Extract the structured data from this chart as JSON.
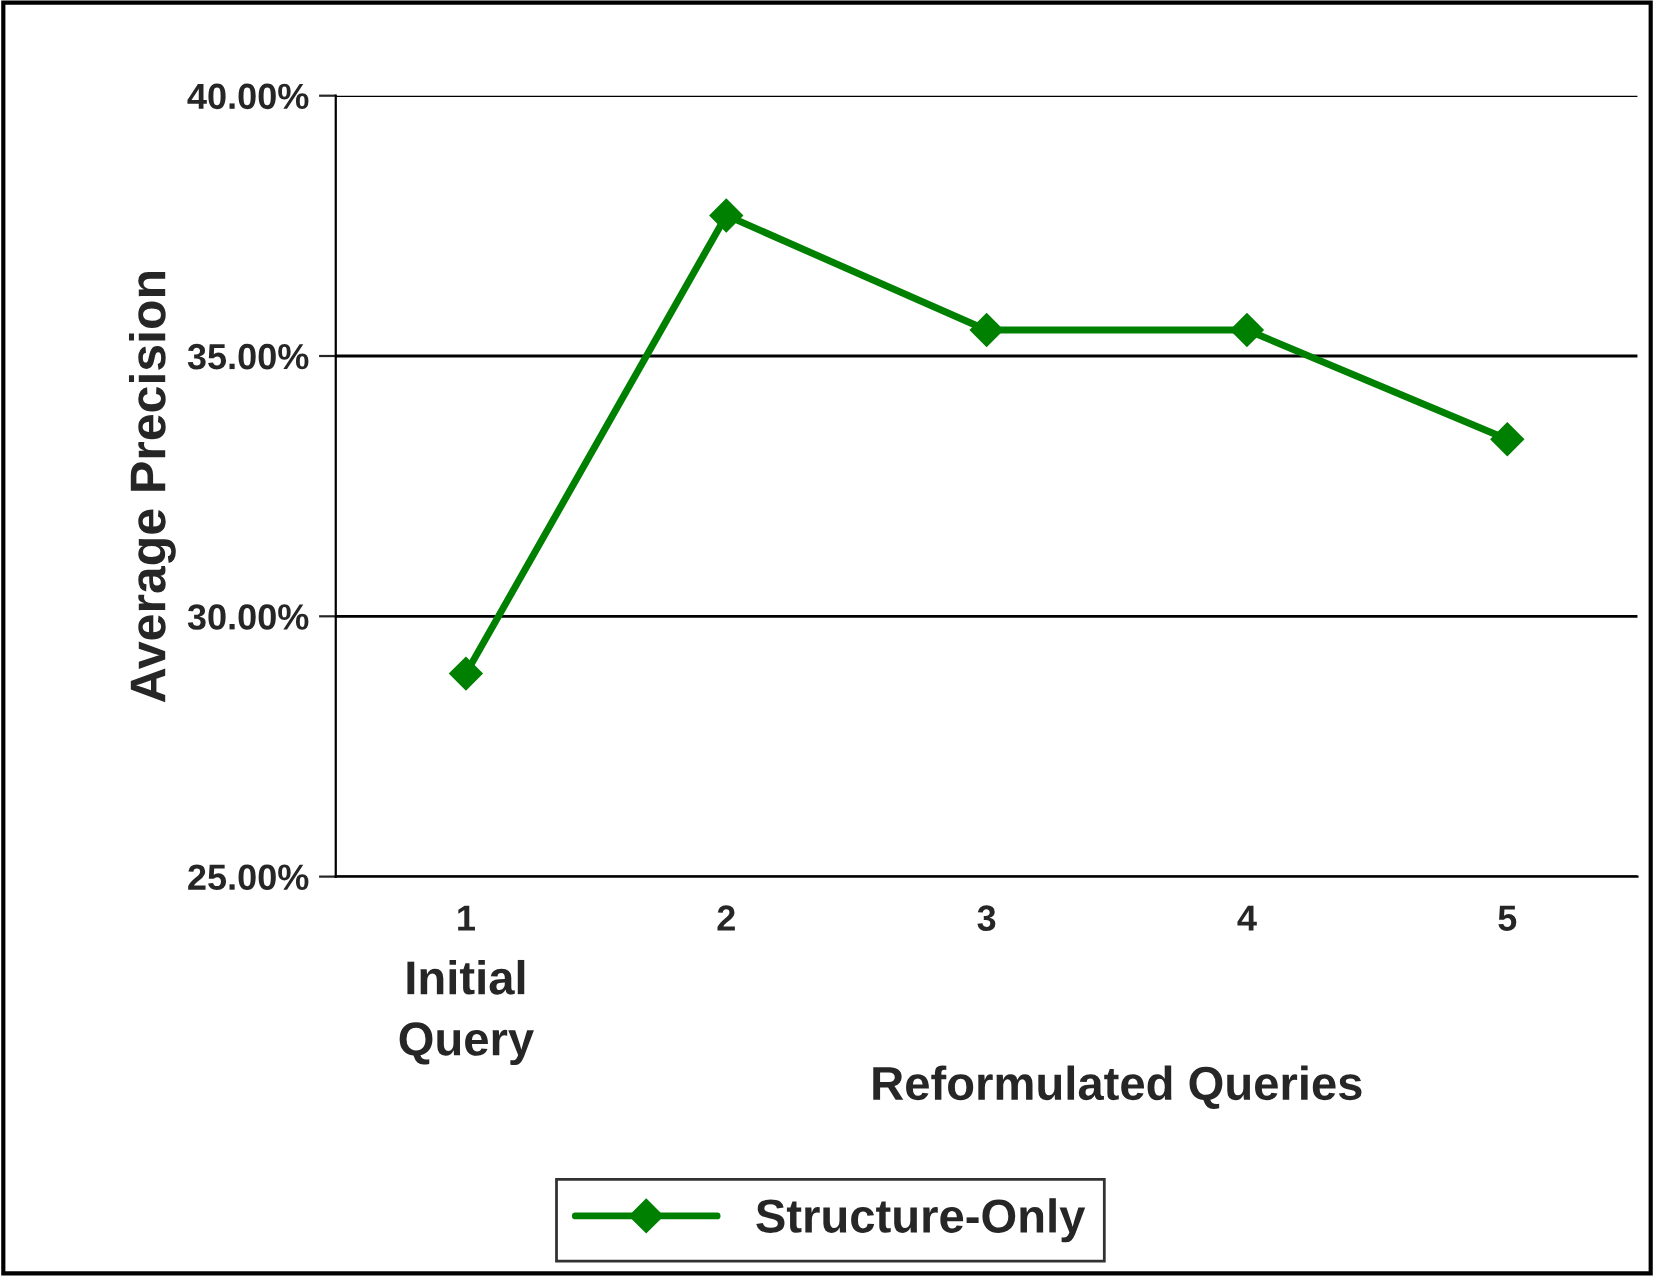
{
  "chart_data": {
    "type": "line",
    "ylabel": "Average Precision",
    "categories": [
      "1",
      "2",
      "3",
      "4",
      "5"
    ],
    "series": [
      {
        "name": "Structure-Only",
        "color": "#008000",
        "values": [
          28.9,
          37.7,
          35.5,
          35.5,
          33.4
        ]
      }
    ],
    "ylim": [
      25,
      40
    ],
    "yticks": [
      {
        "value": 25,
        "label": "25.00%"
      },
      {
        "value": 30,
        "label": "30.00%"
      },
      {
        "value": 35,
        "label": "35.00%"
      },
      {
        "value": 40,
        "label": "40.00%"
      }
    ],
    "grid": "y",
    "legend": "bottom",
    "marker": "diamond",
    "line_style": "solid",
    "annotations": [
      "Initial\nQuery",
      "Reformulated Queries"
    ]
  }
}
